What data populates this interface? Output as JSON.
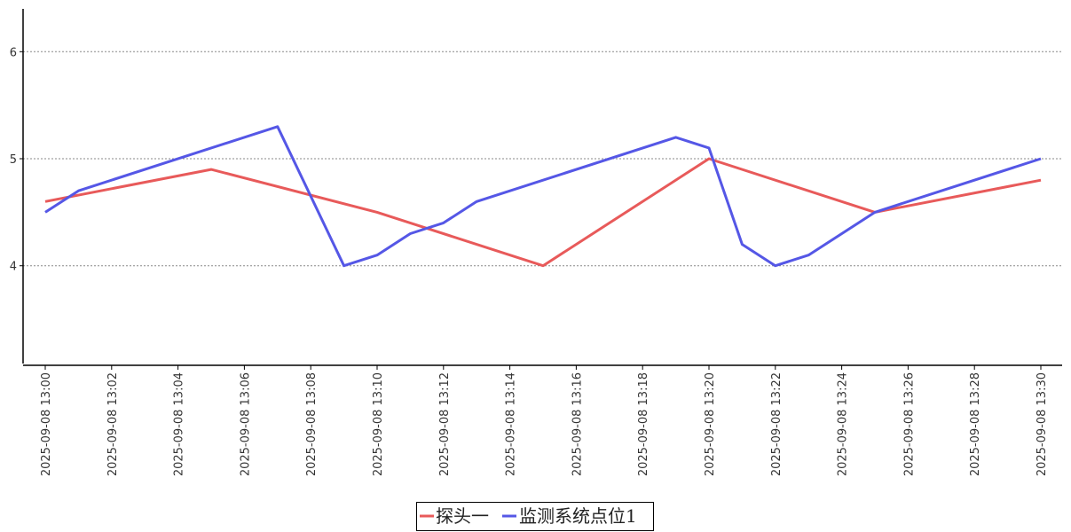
{
  "chart_data": {
    "type": "line",
    "x_ticks": [
      "2025-09-08 13:00",
      "2025-09-08 13:02",
      "2025-09-08 13:04",
      "2025-09-08 13:06",
      "2025-09-08 13:08",
      "2025-09-08 13:10",
      "2025-09-08 13:12",
      "2025-09-08 13:14",
      "2025-09-08 13:16",
      "2025-09-08 13:18",
      "2025-09-08 13:20",
      "2025-09-08 13:22",
      "2025-09-08 13:24",
      "2025-09-08 13:26",
      "2025-09-08 13:28",
      "2025-09-08 13:30"
    ],
    "y_ticks": [
      "4",
      "5",
      "6"
    ],
    "xlim": [
      "2025-09-08 13:00",
      "2025-09-08 13:30"
    ],
    "ylim": [
      3.07,
      6.4
    ],
    "grid": "horizontal dotted",
    "legend_position": "bottom-center",
    "series": [
      {
        "name": "探头一",
        "color": "#e85a5a",
        "x": [
          "2025-09-08 13:00",
          "2025-09-08 13:05",
          "2025-09-08 13:10",
          "2025-09-08 13:15",
          "2025-09-08 13:20",
          "2025-09-08 13:25",
          "2025-09-08 13:30"
        ],
        "y": [
          4.6,
          4.9,
          4.5,
          4.0,
          5.0,
          4.5,
          4.8
        ]
      },
      {
        "name": "监测系统点位1",
        "color": "#5557e6",
        "x": [
          "2025-09-08 13:00",
          "2025-09-08 13:01",
          "2025-09-08 13:07",
          "2025-09-08 13:09",
          "2025-09-08 13:10",
          "2025-09-08 13:11",
          "2025-09-08 13:12",
          "2025-09-08 13:13",
          "2025-09-08 13:19",
          "2025-09-08 13:20",
          "2025-09-08 13:21",
          "2025-09-08 13:22",
          "2025-09-08 13:23",
          "2025-09-08 13:25",
          "2025-09-08 13:30"
        ],
        "y": [
          4.5,
          4.7,
          5.3,
          4.0,
          4.1,
          4.3,
          4.4,
          4.6,
          5.2,
          5.1,
          4.2,
          4.0,
          4.1,
          4.5,
          5.0
        ]
      }
    ]
  }
}
